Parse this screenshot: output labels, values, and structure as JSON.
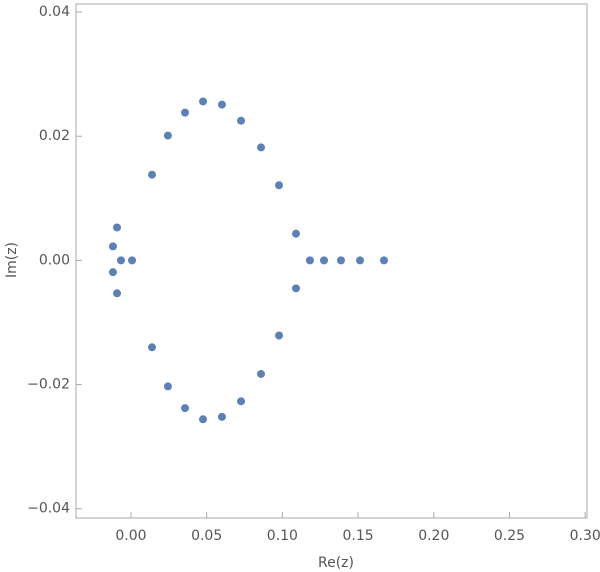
{
  "chart_data": {
    "type": "scatter",
    "xlabel": "Re(z)",
    "ylabel": "Im(z)",
    "x": [
      -0.0119,
      -0.0092,
      -0.0119,
      -0.0092,
      -0.0066,
      0.0007,
      0.0139,
      0.0244,
      0.0357,
      0.0476,
      0.0601,
      0.0727,
      0.0859,
      0.0978,
      0.109,
      0.1182,
      0.1275,
      0.1387,
      0.1513,
      0.1671,
      0.109,
      0.0978,
      0.0859,
      0.0727,
      0.0601,
      0.0476,
      0.0357,
      0.0244,
      0.0139
    ],
    "values": [
      0.00225,
      0.0053,
      -0.0019,
      -0.0053,
      0,
      0,
      0.0138,
      0.0201,
      0.0238,
      0.0256,
      0.0251,
      0.0225,
      0.0182,
      0.0121,
      0.0043,
      0,
      0,
      0,
      0,
      0,
      -0.0045,
      -0.0121,
      -0.0183,
      -0.0227,
      -0.0252,
      -0.0256,
      -0.0238,
      -0.0203,
      -0.014
    ],
    "color": "#5e81b5",
    "xlim": [
      -0.0363,
      0.3012
    ],
    "ylim": [
      -0.0415,
      0.0413
    ],
    "xticks": [
      {
        "value": 0,
        "label": "0.00"
      },
      {
        "value": 0.05,
        "label": "0.05"
      },
      {
        "value": 0.1,
        "label": "0.10"
      },
      {
        "value": 0.15,
        "label": "0.15"
      },
      {
        "value": 0.2,
        "label": "0.20"
      },
      {
        "value": 0.25,
        "label": "0.25"
      },
      {
        "value": 0.3,
        "label": "0.30"
      }
    ],
    "yticks": [
      {
        "value": -0.04,
        "label": "−0.04"
      },
      {
        "value": -0.02,
        "label": "−0.02"
      },
      {
        "value": 0,
        "label": "0.00"
      },
      {
        "value": 0.02,
        "label": "0.02"
      },
      {
        "value": 0.04,
        "label": "0.04"
      }
    ]
  }
}
